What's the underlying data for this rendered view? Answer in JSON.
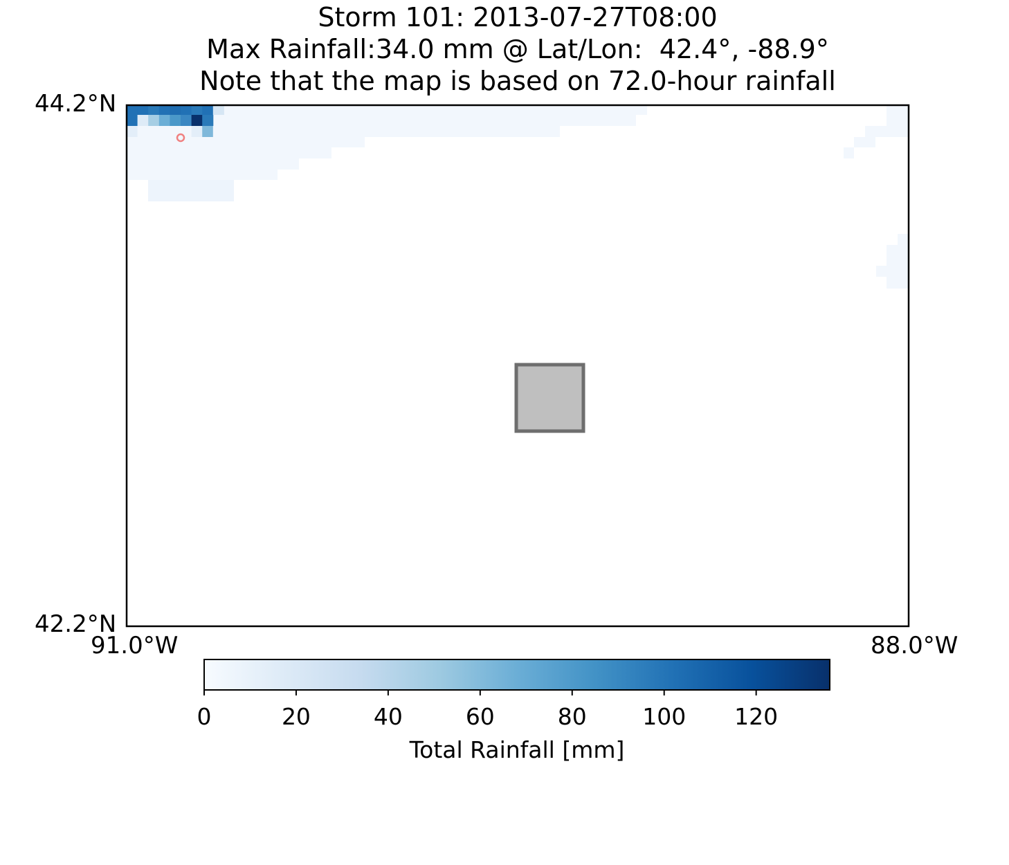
{
  "header": {
    "title_line1": "Storm 101: 2013-07-27T08:00",
    "title_line2": "Max Rainfall:34.0 mm @ Lat/Lon:  42.4°, -88.9°",
    "title_line3": "Note that the map is based on 72.0-hour rainfall"
  },
  "axes": {
    "lat_top": "44.2°N",
    "lat_bottom": "42.2°N",
    "lon_left": "91.0°W",
    "lon_right": "88.0°W"
  },
  "colorbar": {
    "label": "Total Rainfall [mm]",
    "ticks": [
      "0",
      "20",
      "40",
      "60",
      "80",
      "100",
      "120"
    ],
    "tick_values": [
      0,
      20,
      40,
      60,
      80,
      100,
      120
    ],
    "vmin": 0,
    "vmax": 136,
    "colormap": "Blues",
    "colors": [
      "#f7fbff",
      "#deebf7",
      "#c6dbef",
      "#9ecae1",
      "#6baed6",
      "#4292c6",
      "#2171b5",
      "#08519c",
      "#08306b"
    ]
  },
  "map": {
    "lon_range": [
      -91.0,
      -88.0
    ],
    "lat_range": [
      42.2,
      44.2
    ],
    "max_marker": {
      "lat": 42.4,
      "lon": -88.9,
      "color": "#f08080"
    },
    "city_marker": {
      "fill": "#bfbfbf",
      "stroke": "#6e6e6e"
    }
  }
}
